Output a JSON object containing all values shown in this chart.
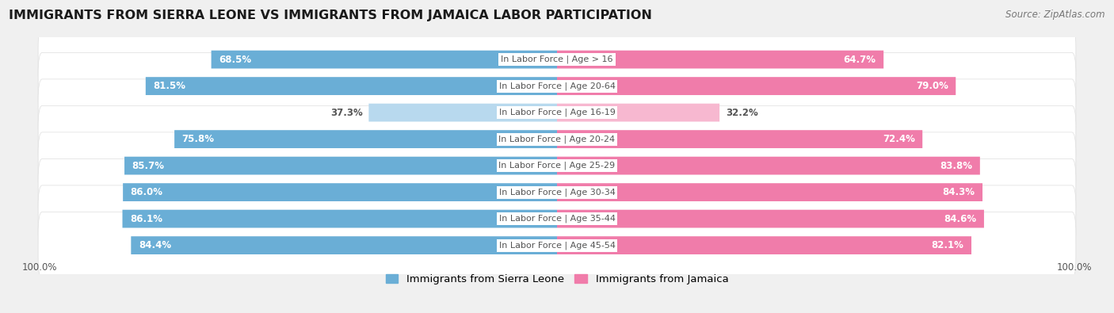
{
  "title": "IMMIGRANTS FROM SIERRA LEONE VS IMMIGRANTS FROM JAMAICA LABOR PARTICIPATION",
  "source": "Source: ZipAtlas.com",
  "categories": [
    "In Labor Force | Age > 16",
    "In Labor Force | Age 20-64",
    "In Labor Force | Age 16-19",
    "In Labor Force | Age 20-24",
    "In Labor Force | Age 25-29",
    "In Labor Force | Age 30-34",
    "In Labor Force | Age 35-44",
    "In Labor Force | Age 45-54"
  ],
  "sierra_leone": [
    68.5,
    81.5,
    37.3,
    75.8,
    85.7,
    86.0,
    86.1,
    84.4
  ],
  "jamaica": [
    64.7,
    79.0,
    32.2,
    72.4,
    83.8,
    84.3,
    84.6,
    82.1
  ],
  "sierra_leone_color_full": "#6aaed6",
  "sierra_leone_color_light": "#b8d9ee",
  "jamaica_color_full": "#f07caa",
  "jamaica_color_light": "#f7b8d0",
  "label_color_dark": "#555555",
  "bg_color": "#f0f0f0",
  "row_bg_color": "#ffffff",
  "title_fontsize": 11.5,
  "source_fontsize": 8.5,
  "legend_fontsize": 9.5,
  "value_fontsize": 8.5,
  "category_fontsize": 8,
  "max_val": 100.0,
  "figsize": [
    14.06,
    3.95
  ],
  "full_threshold": 50.0
}
